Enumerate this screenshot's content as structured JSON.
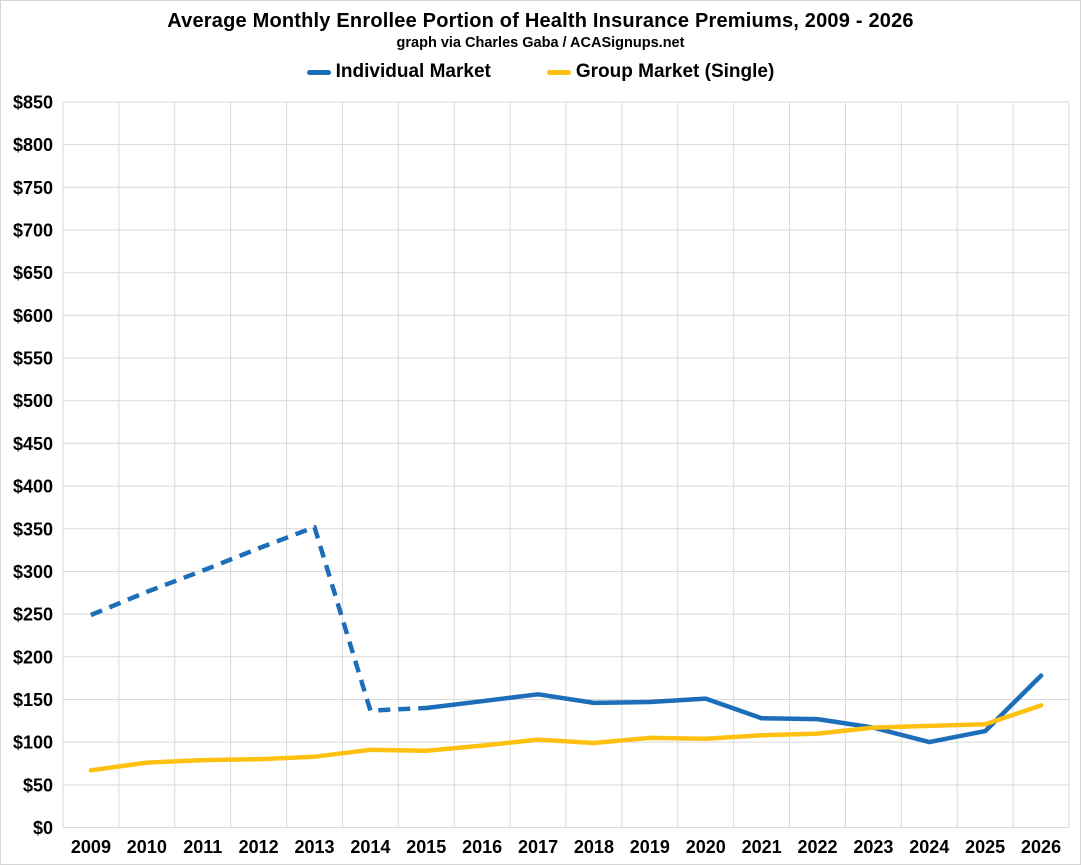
{
  "header": {
    "title": "Average Monthly Enrollee Portion of Health Insurance Premiums, 2009 - 2026",
    "subtitle": "graph via Charles Gaba / ACASignups.net"
  },
  "legend": {
    "items": [
      {
        "label": "Individual Market",
        "color": "#1D6EB8"
      },
      {
        "label": "Group Market (Single)",
        "color": "#FEC110"
      }
    ]
  },
  "chart_data": {
    "type": "line",
    "title": "Average Monthly Enrollee Portion of Health Insurance Premiums, 2009 - 2026",
    "subtitle": "graph via Charles Gaba / ACASignups.net",
    "x": [
      "2009",
      "2010",
      "2011",
      "2012",
      "2013",
      "2014",
      "2015",
      "2016",
      "2017",
      "2018",
      "2019",
      "2020",
      "2021",
      "2022",
      "2023",
      "2024",
      "2025",
      "2026"
    ],
    "y_ticks": [
      "$0",
      "$50",
      "$100",
      "$150",
      "$200",
      "$250",
      "$300",
      "$350",
      "$400",
      "$450",
      "$500",
      "$550",
      "$600",
      "$650",
      "$700",
      "$750",
      "$800",
      "$850"
    ],
    "ylim": [
      0,
      850
    ],
    "ytick_step": 50,
    "grid": true,
    "legend_position": "top-center",
    "series": [
      {
        "name": "Individual Market",
        "color": "#1D6EB8",
        "line_style": "dashed through 2015, solid 2015-2026",
        "dashed_through_index": 6,
        "values": [
          249,
          276,
          301,
          327,
          352,
          137,
          140,
          148,
          156,
          146,
          147,
          151,
          128,
          127,
          117,
          100,
          113,
          178
        ]
      },
      {
        "name": "Group Market (Single)",
        "color": "#FEC110",
        "line_style": "solid",
        "dashed_through_index": -1,
        "values": [
          67,
          76,
          79,
          80,
          83,
          91,
          90,
          96,
          103,
          99,
          105,
          104,
          108,
          110,
          117,
          119,
          121,
          143
        ]
      }
    ],
    "colors": {
      "gridline": "#D9D9D9",
      "background": "#FFFFFF",
      "text": "#000000"
    }
  }
}
